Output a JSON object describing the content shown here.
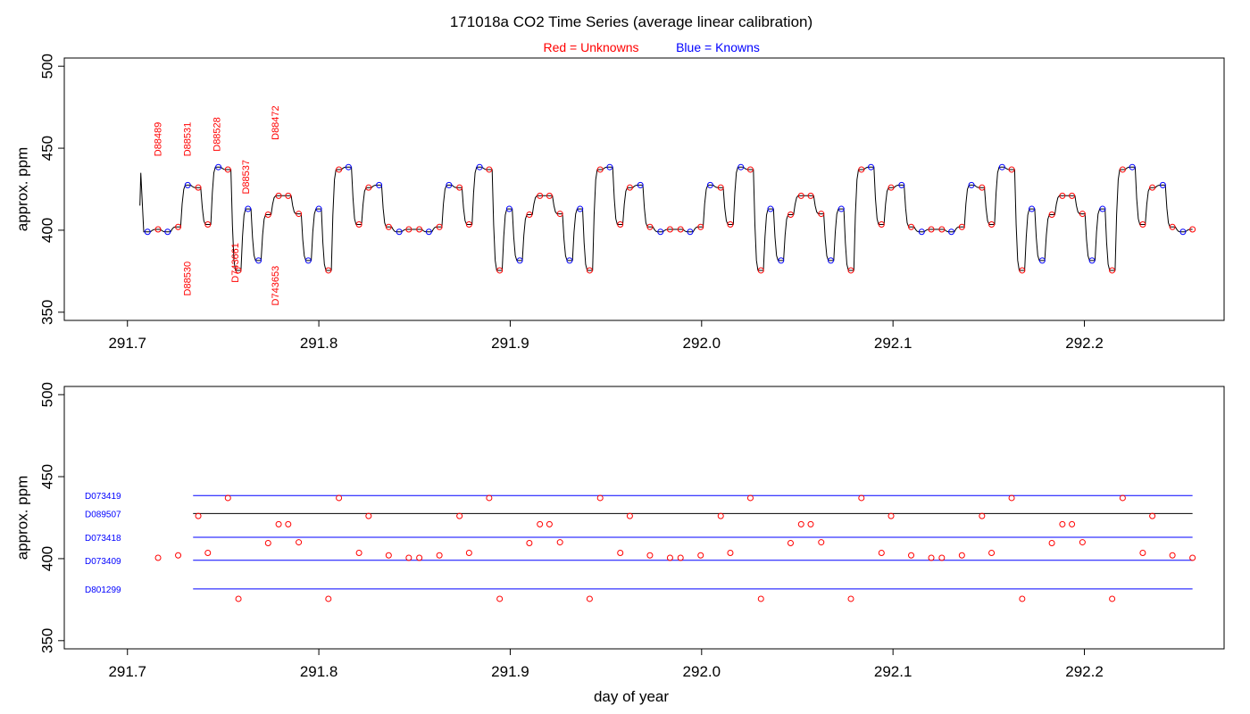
{
  "title": "171018a   CO2 Time Series (average linear calibration)",
  "legend": {
    "unknowns": "Red = Unknowns",
    "knowns": "Blue = Knowns"
  },
  "colors": {
    "unknown": "#ff0000",
    "known": "#0000ff",
    "trace": "#000000"
  },
  "xlabel": "day of year",
  "chart_data": [
    {
      "type": "line",
      "panel": "top",
      "ylabel": "approx. ppm",
      "xlim": [
        291.667,
        292.273
      ],
      "ylim": [
        345,
        505
      ],
      "xticks": [
        "291.7",
        "291.8",
        "291.9",
        "292.0",
        "292.1",
        "292.2"
      ],
      "xtick_values": [
        291.7,
        291.8,
        291.9,
        292.0,
        292.1,
        292.2
      ],
      "yticks": [
        "350",
        "400",
        "450",
        "500"
      ],
      "ytick_values": [
        350,
        400,
        450,
        500
      ],
      "grid": false,
      "trace_start": {
        "x": 291.7065,
        "y": 415
      },
      "trace_spike": {
        "x": 291.707,
        "y": 435
      },
      "points": [
        {
          "x": 291.7105,
          "y": 399.0,
          "kind": "known"
        },
        {
          "x": 291.716,
          "y": 400.5,
          "kind": "unknown"
        },
        {
          "x": 291.721,
          "y": 399.0,
          "kind": "known"
        },
        {
          "x": 291.7265,
          "y": 402.0,
          "kind": "unknown"
        },
        {
          "x": 291.7315,
          "y": 427.5,
          "kind": "known"
        },
        {
          "x": 291.737,
          "y": 426.0,
          "kind": "unknown"
        },
        {
          "x": 291.742,
          "y": 403.5,
          "kind": "unknown"
        },
        {
          "x": 291.7475,
          "y": 438.5,
          "kind": "known"
        },
        {
          "x": 291.7525,
          "y": 437.0,
          "kind": "unknown"
        },
        {
          "x": 291.758,
          "y": 375.5,
          "kind": "unknown"
        },
        {
          "x": 291.763,
          "y": 413.0,
          "kind": "known"
        },
        {
          "x": 291.7685,
          "y": 381.5,
          "kind": "known"
        },
        {
          "x": 291.7735,
          "y": 409.5,
          "kind": "unknown"
        },
        {
          "x": 291.779,
          "y": 421.0,
          "kind": "unknown"
        },
        {
          "x": 291.784,
          "y": 421.0,
          "kind": "unknown"
        },
        {
          "x": 291.7895,
          "y": 410.0,
          "kind": "unknown"
        },
        {
          "x": 291.7945,
          "y": 381.5,
          "kind": "known"
        },
        {
          "x": 291.8,
          "y": 413.0,
          "kind": "known"
        },
        {
          "x": 291.805,
          "y": 375.5,
          "kind": "unknown"
        },
        {
          "x": 291.8105,
          "y": 437.0,
          "kind": "unknown"
        },
        {
          "x": 291.8155,
          "y": 438.5,
          "kind": "known"
        },
        {
          "x": 291.821,
          "y": 403.5,
          "kind": "unknown"
        },
        {
          "x": 291.826,
          "y": 426.0,
          "kind": "unknown"
        },
        {
          "x": 291.8315,
          "y": 427.5,
          "kind": "known"
        },
        {
          "x": 291.8365,
          "y": 402.0,
          "kind": "unknown"
        },
        {
          "x": 291.842,
          "y": 399.0,
          "kind": "known"
        },
        {
          "x": 291.847,
          "y": 400.5,
          "kind": "unknown"
        },
        {
          "x": 291.8525,
          "y": 400.5,
          "kind": "unknown"
        },
        {
          "x": 291.8575,
          "y": 399.0,
          "kind": "known"
        },
        {
          "x": 291.863,
          "y": 402.0,
          "kind": "unknown"
        },
        {
          "x": 291.868,
          "y": 427.5,
          "kind": "known"
        },
        {
          "x": 291.8735,
          "y": 426.0,
          "kind": "unknown"
        },
        {
          "x": 291.8785,
          "y": 403.5,
          "kind": "unknown"
        },
        {
          "x": 291.884,
          "y": 438.5,
          "kind": "known"
        },
        {
          "x": 291.889,
          "y": 437.0,
          "kind": "unknown"
        },
        {
          "x": 291.8945,
          "y": 375.5,
          "kind": "unknown"
        },
        {
          "x": 291.8995,
          "y": 413.0,
          "kind": "known"
        },
        {
          "x": 291.905,
          "y": 381.5,
          "kind": "known"
        },
        {
          "x": 291.91,
          "y": 409.5,
          "kind": "unknown"
        },
        {
          "x": 291.9155,
          "y": 421.0,
          "kind": "unknown"
        },
        {
          "x": 291.9205,
          "y": 421.0,
          "kind": "unknown"
        },
        {
          "x": 291.926,
          "y": 410.0,
          "kind": "unknown"
        },
        {
          "x": 291.931,
          "y": 381.5,
          "kind": "known"
        },
        {
          "x": 291.9365,
          "y": 413.0,
          "kind": "known"
        },
        {
          "x": 291.9415,
          "y": 375.5,
          "kind": "unknown"
        },
        {
          "x": 291.947,
          "y": 437.0,
          "kind": "unknown"
        },
        {
          "x": 291.952,
          "y": 438.5,
          "kind": "known"
        },
        {
          "x": 291.9575,
          "y": 403.5,
          "kind": "unknown"
        },
        {
          "x": 291.9625,
          "y": 426.0,
          "kind": "unknown"
        },
        {
          "x": 291.968,
          "y": 427.5,
          "kind": "known"
        },
        {
          "x": 291.973,
          "y": 402.0,
          "kind": "unknown"
        },
        {
          "x": 291.9785,
          "y": 399.0,
          "kind": "known"
        },
        {
          "x": 291.9835,
          "y": 400.5,
          "kind": "unknown"
        },
        {
          "x": 291.989,
          "y": 400.5,
          "kind": "unknown"
        },
        {
          "x": 291.994,
          "y": 399.0,
          "kind": "known"
        },
        {
          "x": 291.9995,
          "y": 402.0,
          "kind": "unknown"
        },
        {
          "x": 292.0045,
          "y": 427.5,
          "kind": "known"
        },
        {
          "x": 292.01,
          "y": 426.0,
          "kind": "unknown"
        },
        {
          "x": 292.015,
          "y": 403.5,
          "kind": "unknown"
        },
        {
          "x": 292.0205,
          "y": 438.5,
          "kind": "known"
        },
        {
          "x": 292.0255,
          "y": 437.0,
          "kind": "unknown"
        },
        {
          "x": 292.031,
          "y": 375.5,
          "kind": "unknown"
        },
        {
          "x": 292.036,
          "y": 413.0,
          "kind": "known"
        },
        {
          "x": 292.0415,
          "y": 381.5,
          "kind": "known"
        },
        {
          "x": 292.0465,
          "y": 409.5,
          "kind": "unknown"
        },
        {
          "x": 292.052,
          "y": 421.0,
          "kind": "unknown"
        },
        {
          "x": 292.057,
          "y": 421.0,
          "kind": "unknown"
        },
        {
          "x": 292.0625,
          "y": 410.0,
          "kind": "unknown"
        },
        {
          "x": 292.0675,
          "y": 381.5,
          "kind": "known"
        },
        {
          "x": 292.073,
          "y": 413.0,
          "kind": "known"
        },
        {
          "x": 292.078,
          "y": 375.5,
          "kind": "unknown"
        },
        {
          "x": 292.0835,
          "y": 437.0,
          "kind": "unknown"
        },
        {
          "x": 292.0885,
          "y": 438.5,
          "kind": "known"
        },
        {
          "x": 292.094,
          "y": 403.5,
          "kind": "unknown"
        },
        {
          "x": 292.099,
          "y": 426.0,
          "kind": "unknown"
        },
        {
          "x": 292.1045,
          "y": 427.5,
          "kind": "known"
        },
        {
          "x": 292.1095,
          "y": 402.0,
          "kind": "unknown"
        },
        {
          "x": 292.115,
          "y": 399.0,
          "kind": "known"
        },
        {
          "x": 292.12,
          "y": 400.5,
          "kind": "unknown"
        },
        {
          "x": 292.1255,
          "y": 400.5,
          "kind": "unknown"
        },
        {
          "x": 292.1305,
          "y": 399.0,
          "kind": "known"
        },
        {
          "x": 292.136,
          "y": 402.0,
          "kind": "unknown"
        },
        {
          "x": 292.141,
          "y": 427.5,
          "kind": "known"
        },
        {
          "x": 292.1465,
          "y": 426.0,
          "kind": "unknown"
        },
        {
          "x": 292.1515,
          "y": 403.5,
          "kind": "unknown"
        },
        {
          "x": 292.157,
          "y": 438.5,
          "kind": "known"
        },
        {
          "x": 292.162,
          "y": 437.0,
          "kind": "unknown"
        },
        {
          "x": 292.1675,
          "y": 375.5,
          "kind": "unknown"
        },
        {
          "x": 292.1725,
          "y": 413.0,
          "kind": "known"
        },
        {
          "x": 292.178,
          "y": 381.5,
          "kind": "known"
        },
        {
          "x": 292.183,
          "y": 409.5,
          "kind": "unknown"
        },
        {
          "x": 292.1885,
          "y": 421.0,
          "kind": "unknown"
        },
        {
          "x": 292.1935,
          "y": 421.0,
          "kind": "unknown"
        },
        {
          "x": 292.199,
          "y": 410.0,
          "kind": "unknown"
        },
        {
          "x": 292.204,
          "y": 381.5,
          "kind": "known"
        },
        {
          "x": 292.2095,
          "y": 413.0,
          "kind": "known"
        },
        {
          "x": 292.2145,
          "y": 375.5,
          "kind": "unknown"
        },
        {
          "x": 292.22,
          "y": 437.0,
          "kind": "unknown"
        },
        {
          "x": 292.225,
          "y": 438.5,
          "kind": "known"
        },
        {
          "x": 292.2305,
          "y": 403.5,
          "kind": "unknown"
        },
        {
          "x": 292.2355,
          "y": 426.0,
          "kind": "unknown"
        },
        {
          "x": 292.241,
          "y": 427.5,
          "kind": "known"
        },
        {
          "x": 292.246,
          "y": 402.0,
          "kind": "unknown"
        },
        {
          "x": 292.2515,
          "y": 399.0,
          "kind": "known"
        },
        {
          "x": 292.2565,
          "y": 400.5,
          "kind": "unknown"
        }
      ],
      "annotations": [
        {
          "text": "D88489",
          "x": 291.7175,
          "y": 445
        },
        {
          "text": "D88531",
          "x": 291.733,
          "y": 445
        },
        {
          "text": "D88528",
          "x": 291.7485,
          "y": 448
        },
        {
          "text": "D88537",
          "x": 291.7635,
          "y": 422
        },
        {
          "text": "D88472",
          "x": 291.779,
          "y": 455
        },
        {
          "text": "D88530",
          "x": 291.733,
          "y": 360
        },
        {
          "text": "D743661",
          "x": 291.758,
          "y": 368
        },
        {
          "text": "D743653",
          "x": 291.779,
          "y": 354
        }
      ]
    },
    {
      "type": "scatter",
      "panel": "bottom",
      "ylabel": "approx. ppm",
      "xlim": [
        291.667,
        292.273
      ],
      "ylim": [
        345,
        505
      ],
      "xticks": [
        "291.7",
        "291.8",
        "291.9",
        "292.0",
        "292.1",
        "292.2"
      ],
      "xtick_values": [
        291.7,
        291.8,
        291.9,
        292.0,
        292.1,
        292.2
      ],
      "yticks": [
        "350",
        "400",
        "450",
        "500"
      ],
      "ytick_values": [
        350,
        400,
        450,
        500
      ],
      "grid": false,
      "reference_lines": [
        {
          "name": "D073419",
          "y": 438.5,
          "color": "#0000ff"
        },
        {
          "name": "D089507",
          "y": 427.5,
          "color": "#000000"
        },
        {
          "name": "D073418",
          "y": 413.0,
          "color": "#0000ff"
        },
        {
          "name": "D073409",
          "y": 399.0,
          "color": "#0000ff"
        },
        {
          "name": "D801299",
          "y": 381.5,
          "color": "#0000ff"
        }
      ],
      "reference_x_range": [
        291.7105,
        292.2565
      ]
    }
  ]
}
